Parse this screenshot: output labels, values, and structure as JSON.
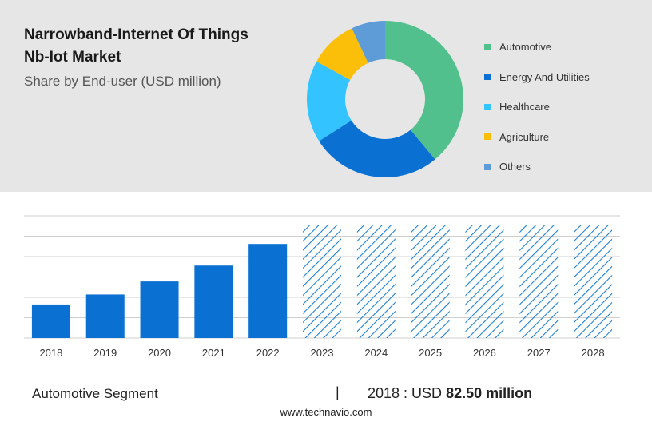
{
  "header": {
    "title_line1": "Narrowband-Internet Of Things",
    "title_line2": "Nb-Iot Market",
    "subtitle": "Share by End-user (USD million)"
  },
  "chart_data": [
    {
      "type": "pie",
      "variant": "donut",
      "title": "Share by End-user (USD million)",
      "categories": [
        "Automotive",
        "Energy And Utilities",
        "Healthcare",
        "Agriculture",
        "Others"
      ],
      "values": [
        39,
        27,
        17,
        10,
        7
      ],
      "colors": [
        "#52c08d",
        "#0a71d3",
        "#33c3ff",
        "#fbbf09",
        "#5d9cd6"
      ],
      "legend_position": "right"
    },
    {
      "type": "bar",
      "categories": [
        "2018",
        "2019",
        "2020",
        "2021",
        "2022",
        "2023",
        "2024",
        "2025",
        "2026",
        "2027",
        "2028"
      ],
      "values": [
        82.5,
        107,
        139,
        178,
        231,
        277,
        277,
        277,
        277,
        277,
        277
      ],
      "forecast": [
        false,
        false,
        false,
        false,
        false,
        true,
        true,
        true,
        true,
        true,
        true
      ],
      "bar_color": "#0a71d3",
      "forecast_color": "#1f7fd0",
      "ylim": [
        0,
        300
      ],
      "grid": true,
      "ylabel": "",
      "xlabel": ""
    }
  ],
  "footer": {
    "segment_label": "Automotive Segment",
    "separator": "|",
    "value_prefix": "2018 : USD",
    "value_bold": "82.50 million",
    "source": "www.technavio.com"
  }
}
